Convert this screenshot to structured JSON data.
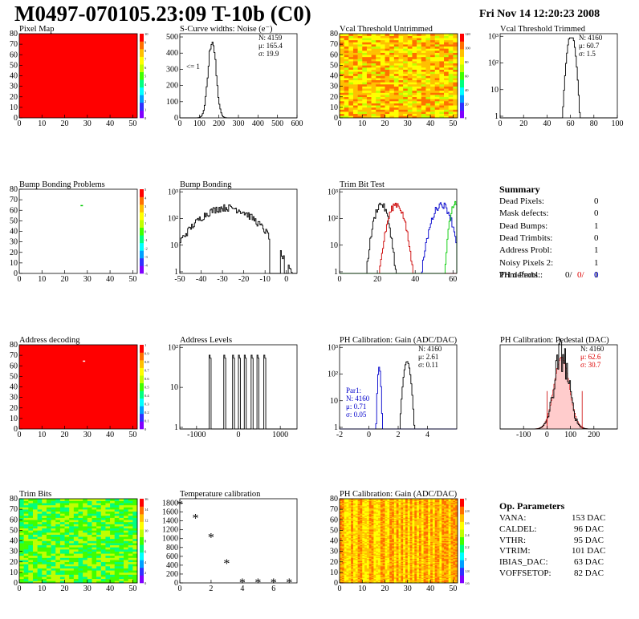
{
  "page": {
    "title": "M0497-070105.23:09 T-10b (C0)",
    "date": "Fri Nov 14 12:20:23 2008"
  },
  "colors": {
    "red": "#ff0000",
    "blue": "#0000cc",
    "green": "#00cc00",
    "palette": [
      "#8000ff",
      "#3030ff",
      "#00a0ff",
      "#00ffff",
      "#00ff80",
      "#40ff00",
      "#c0ff00",
      "#ffff00",
      "#ffc000",
      "#ff7000",
      "#ff0000"
    ]
  },
  "chart_data": [
    {
      "id": "pixelmap",
      "type": "heatmap",
      "title": "Pixel Map",
      "xlim": [
        0,
        52
      ],
      "ylim": [
        0,
        80
      ],
      "xticks": [
        "0",
        "10",
        "20",
        "30",
        "40",
        "50"
      ],
      "yticks": [
        "0",
        "10",
        "20",
        "30",
        "40",
        "50",
        "60",
        "70",
        "80"
      ],
      "zticks": [
        "0",
        "1",
        "2",
        "3",
        "4",
        "5",
        "6",
        "7",
        "8",
        "9",
        "10"
      ],
      "fill": "uniform-max"
    },
    {
      "id": "noise",
      "type": "histogram",
      "title": "S-Curve widths: Noise (e⁻)",
      "xlim": [
        0,
        600
      ],
      "ylim": [
        0,
        520
      ],
      "xticks": [
        "0",
        "100",
        "200",
        "300",
        "400",
        "500",
        "600"
      ],
      "yticks": [
        "0",
        "100",
        "200",
        "300",
        "400",
        "500"
      ],
      "gauss": {
        "mean": 165.4,
        "sigma": 19.9,
        "peak": 485
      },
      "stats": [
        "N: 4159",
        "μ: 165.4",
        "σ: 19.9"
      ],
      "annotation": "<= 1"
    },
    {
      "id": "vcalun",
      "type": "heatmap",
      "title": "Vcal Threshold Untrimmed",
      "xlim": [
        0,
        52
      ],
      "ylim": [
        0,
        80
      ],
      "xticks": [
        "0",
        "10",
        "20",
        "30",
        "40",
        "50"
      ],
      "yticks": [
        "0",
        "10",
        "20",
        "30",
        "40",
        "50",
        "60",
        "70",
        "80"
      ],
      "zticks": [
        "0",
        "20",
        "40",
        "60",
        "80",
        "100",
        "120"
      ],
      "fill": "random-high"
    },
    {
      "id": "vcaltr",
      "type": "histogram",
      "title": "Vcal Threshold Trimmed",
      "log": true,
      "xlim": [
        0,
        100
      ],
      "xticks": [
        "0",
        "20",
        "40",
        "60",
        "80",
        "100"
      ],
      "yticks": [
        "1",
        "10",
        "10²",
        "10³"
      ],
      "gauss": {
        "mean": 60.7,
        "sigma": 1.5,
        "peak": 1500
      },
      "stats": [
        "N: 4160",
        "μ: 60.7",
        "σ:  1.5"
      ]
    },
    {
      "id": "bumpmap",
      "type": "heatmap",
      "title": "Bump Bonding Problems",
      "xlim": [
        0,
        52
      ],
      "ylim": [
        0,
        80
      ],
      "xticks": [
        "0",
        "10",
        "20",
        "30",
        "40",
        "50"
      ],
      "yticks": [
        "0",
        "10",
        "20",
        "30",
        "40",
        "50",
        "60",
        "70",
        "80"
      ],
      "zticks": [
        "-5",
        "-4",
        "-3",
        "-2",
        "-1",
        "0",
        "1",
        "2",
        "3",
        "4",
        "5"
      ],
      "fill": "empty",
      "marks": [
        [
          27,
          65
        ]
      ]
    },
    {
      "id": "bumpbond",
      "type": "histogram",
      "title": "Bump Bonding",
      "log": true,
      "xlim": [
        -50,
        5
      ],
      "xticks": [
        "-50",
        "-40",
        "-30",
        "-20",
        "-10",
        "0"
      ],
      "yticks": [
        "1",
        "10",
        "10²",
        "10³"
      ],
      "peak": {
        "center": -28,
        "width": 9,
        "height": 300
      }
    },
    {
      "id": "trimbit",
      "type": "histogram",
      "title": "Trim Bit Test",
      "log": true,
      "xlim": [
        0,
        62
      ],
      "xticks": [
        "0",
        "20",
        "40",
        "60"
      ],
      "yticks": [
        "1",
        "10",
        "10²",
        "10³"
      ],
      "series": [
        {
          "color": "#000000",
          "mean": 22,
          "sigma": 2.2
        },
        {
          "color": "#cc0000",
          "mean": 30,
          "sigma": 2.5
        },
        {
          "color": "#0000cc",
          "mean": 54,
          "sigma": 3
        },
        {
          "color": "#00cc00",
          "mean": 61,
          "sigma": 1.5
        }
      ]
    },
    {
      "id": "addrmap",
      "type": "heatmap",
      "title": "Address decoding",
      "xlim": [
        0,
        52
      ],
      "ylim": [
        0,
        80
      ],
      "xticks": [
        "0",
        "10",
        "20",
        "30",
        "40",
        "50"
      ],
      "yticks": [
        "0",
        "10",
        "20",
        "30",
        "40",
        "50",
        "60",
        "70",
        "80"
      ],
      "zticks": [
        "0",
        "0.1",
        "0.2",
        "0.3",
        "0.4",
        "0.5",
        "0.6",
        "0.7",
        "0.8",
        "0.9",
        "1"
      ],
      "fill": "uniform-max",
      "marks": [
        [
          28,
          65
        ]
      ]
    },
    {
      "id": "addrlev",
      "type": "histogram",
      "title": "Address Levels",
      "log": true,
      "xlim": [
        -1400,
        1400
      ],
      "xticks": [
        "-1000",
        "0",
        "1000"
      ],
      "yticks": [
        "1",
        "10",
        "10²"
      ],
      "peaks": [
        -700,
        -350,
        -150,
        0,
        150,
        300,
        450,
        600
      ]
    },
    {
      "id": "phgain",
      "type": "histogram",
      "title": "PH Calibration: Gain (ADC/DAC)",
      "log": true,
      "xlim": [
        -2,
        6
      ],
      "xticks": [
        "-2",
        "0",
        "2",
        "4"
      ],
      "yticks": [
        "1",
        "10",
        "10²",
        "10³"
      ],
      "stats": [
        "N: 4160",
        "μ: 2.61",
        "σ: 0.11"
      ],
      "stats2": [
        "Par1:",
        "N: 4160",
        "μ: 0.71",
        "σ: 0.05"
      ],
      "series": [
        {
          "color": "#000000",
          "mean": 2.61,
          "sigma": 0.11
        },
        {
          "color": "#0000cc",
          "mean": 0.71,
          "sigma": 0.05
        }
      ]
    },
    {
      "id": "phped",
      "type": "histogram",
      "title": "PH Calibration: Pedestal (DAC)",
      "log": false,
      "xlim": [
        -200,
        300
      ],
      "xticks": [
        "-100",
        "0",
        "100",
        "200"
      ],
      "stats": [
        "N: 4160",
        "μ: 62.6",
        "σ: 30.7"
      ],
      "gauss": {
        "mean": 62.6,
        "sigma": 30.7,
        "peak": 90
      }
    },
    {
      "id": "trimbits",
      "type": "heatmap",
      "title": "Trim Bits",
      "xlim": [
        0,
        52
      ],
      "ylim": [
        0,
        80
      ],
      "xticks": [
        "0",
        "10",
        "20",
        "30",
        "40",
        "50"
      ],
      "yticks": [
        "0",
        "10",
        "20",
        "30",
        "40",
        "50",
        "60",
        "70",
        "80"
      ],
      "zticks": [
        "0",
        "2",
        "4",
        "6",
        "8",
        "10",
        "12",
        "14",
        "16"
      ],
      "fill": "random-mid"
    },
    {
      "id": "tempcal",
      "type": "scatter",
      "title": "Temperature calibration",
      "xlim": [
        0,
        7.5
      ],
      "ylim": [
        0,
        1900
      ],
      "xticks": [
        "0",
        "2",
        "4",
        "6"
      ],
      "yticks": [
        "0",
        "200",
        "400",
        "600",
        "800",
        "1000",
        "1200",
        "1400",
        "1600",
        "1800"
      ],
      "x": [
        0,
        1,
        2,
        3,
        4,
        5,
        6,
        7
      ],
      "y": [
        1760,
        1460,
        1020,
        430,
        0,
        0,
        0,
        0
      ]
    },
    {
      "id": "phgainmap",
      "type": "heatmap",
      "title": "PH Calibration: Gain (ADC/DAC)",
      "xlim": [
        0,
        52
      ],
      "ylim": [
        0,
        80
      ],
      "xticks": [
        "0",
        "10",
        "20",
        "30",
        "40",
        "50"
      ],
      "yticks": [
        "0",
        "10",
        "20",
        "30",
        "40",
        "50",
        "60",
        "70",
        "80"
      ],
      "zticks": [
        "1.6",
        "1.8",
        "2",
        "2.2",
        "2.4",
        "2.6",
        "2.8",
        "3"
      ],
      "fill": "columns"
    }
  ],
  "summary": {
    "heading": "Summary",
    "rows": [
      {
        "label": "Dead Pixels:",
        "value": "0"
      },
      {
        "label": "Mask defects:",
        "value": "0"
      },
      {
        "label": "Dead Bumps:",
        "value": "1"
      },
      {
        "label": "Dead Trimbits:",
        "value": "0"
      },
      {
        "label": "Address Probl:",
        "value": "1"
      },
      {
        "label": "Noisy Pixels 2:",
        "value": "1"
      },
      {
        "label": "Trim Probl.:",
        "value": "1"
      }
    ],
    "ph_label": "PH defects:",
    "ph_values": [
      "0/",
      "0/",
      "0"
    ]
  },
  "opparams": {
    "heading": "Op. Parameters",
    "rows": [
      {
        "label": "VANA:",
        "value": "153 DAC"
      },
      {
        "label": "CALDEL:",
        "value": "96 DAC"
      },
      {
        "label": "VTHR:",
        "value": "95 DAC"
      },
      {
        "label": "VTRIM:",
        "value": "101 DAC"
      },
      {
        "label": "IBIAS_DAC:",
        "value": "63 DAC"
      },
      {
        "label": "VOFFSETOP:",
        "value": "82 DAC"
      }
    ]
  }
}
